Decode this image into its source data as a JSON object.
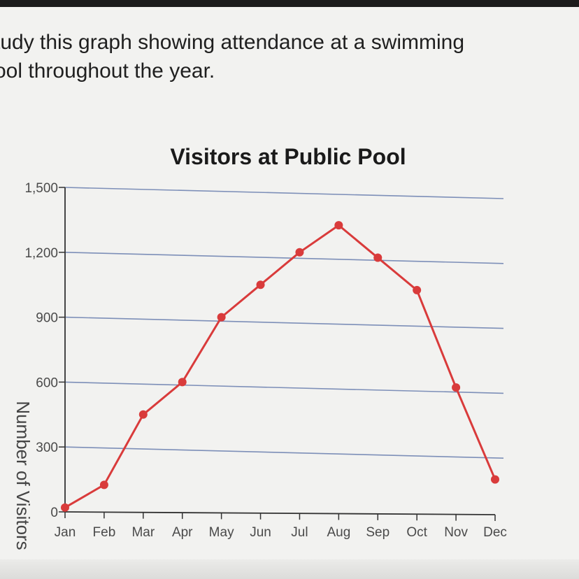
{
  "prompt": {
    "line1": "tudy this graph showing attendance at a swimming",
    "line2": "ool throughout the year."
  },
  "chart_data": {
    "type": "line",
    "title": "Visitors at Public Pool",
    "ylabel": "Number of Visitors",
    "xlabel": "",
    "categories": [
      "Jan",
      "Feb",
      "Mar",
      "Apr",
      "May",
      "Jun",
      "Jul",
      "Aug",
      "Sep",
      "Oct",
      "Nov",
      "Dec"
    ],
    "series": [
      {
        "values": [
          20,
          125,
          450,
          600,
          900,
          1050,
          1200,
          1325,
          1175,
          1025,
          575,
          150
        ]
      }
    ],
    "ylim": [
      0,
      1500
    ],
    "yticks": [
      0,
      300,
      600,
      900,
      1200,
      1500
    ],
    "ytick_labels": [
      "0",
      "300",
      "600",
      "900",
      "1,200",
      "1,500"
    ],
    "grid": true,
    "colors": {
      "line": "#d93b3b",
      "grid": "#7d8fb8",
      "axis": "#333333"
    }
  }
}
